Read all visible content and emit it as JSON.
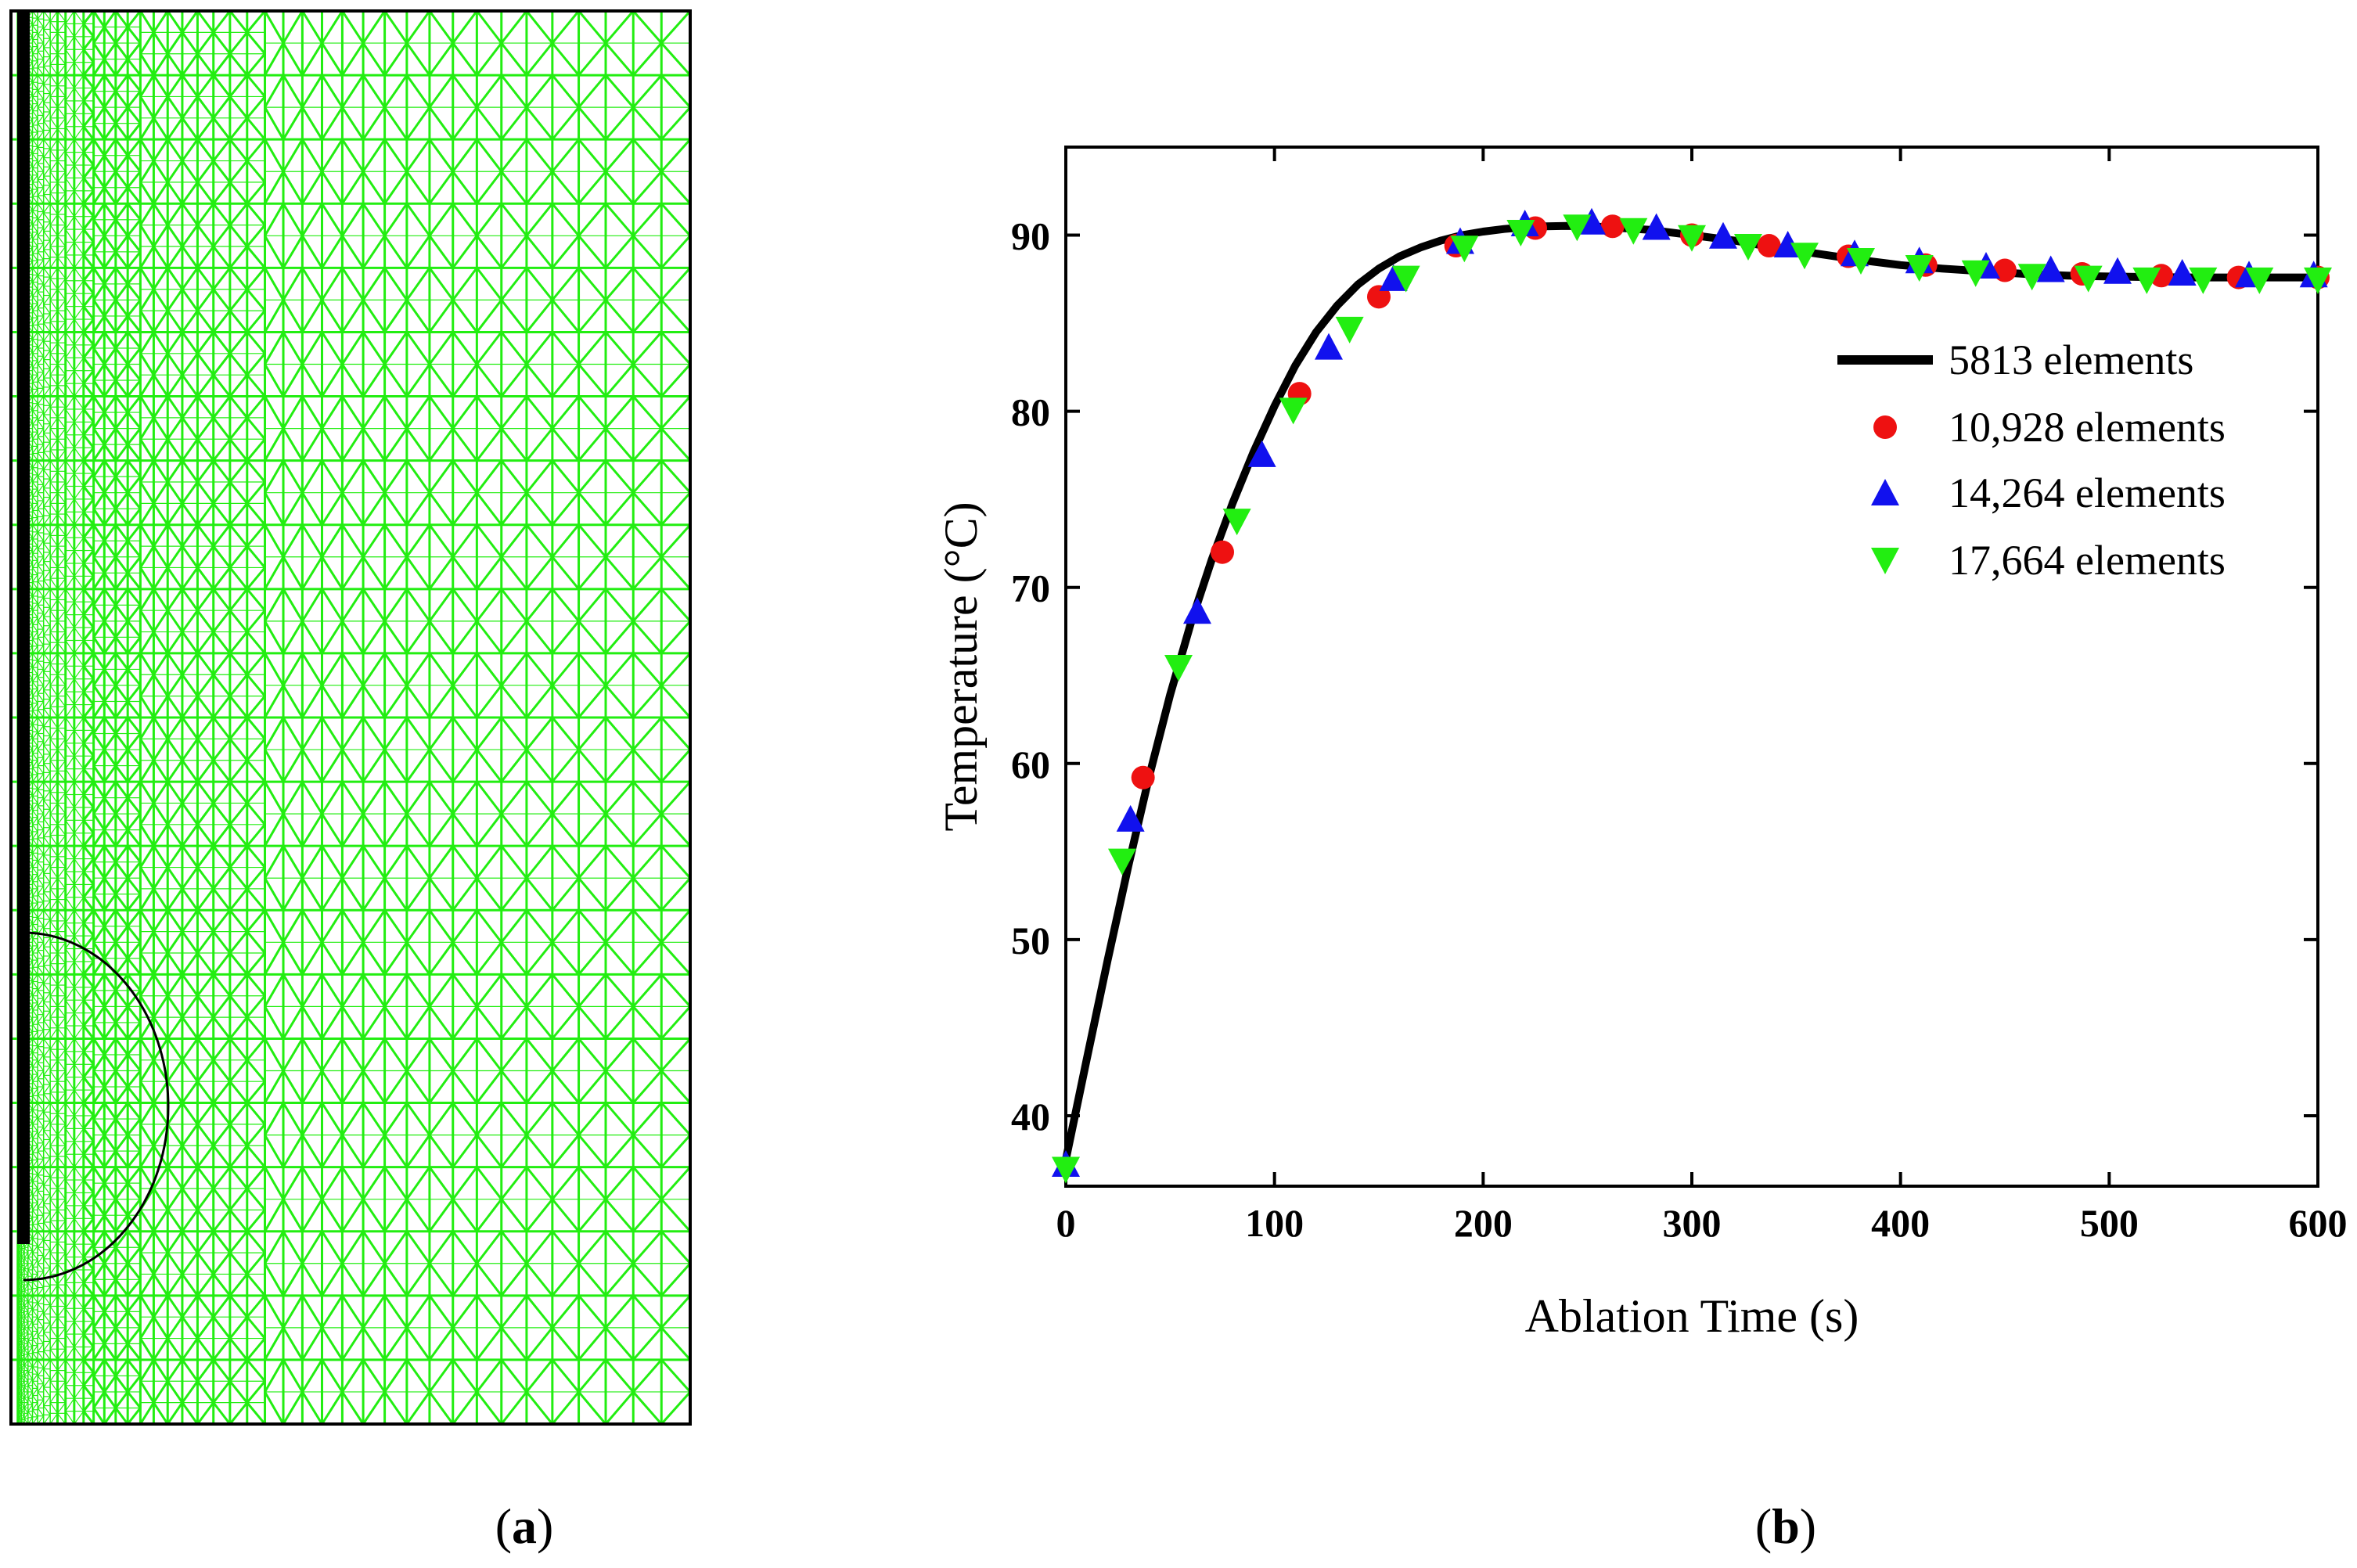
{
  "panels": {
    "a_label": "a",
    "b_label": "b"
  },
  "mesh": {
    "description_icon": "finite-element-mesh",
    "mesh_color": "#22ee11",
    "outline_color": "#000000"
  },
  "chart_data": {
    "type": "line",
    "title": "",
    "xlabel": "Ablation Time (s)",
    "ylabel": "Temperature (°C)",
    "xlim": [
      0,
      600
    ],
    "ylim": [
      36,
      95
    ],
    "xticks": [
      0,
      100,
      200,
      300,
      400,
      500,
      600
    ],
    "yticks": [
      40,
      50,
      60,
      70,
      80,
      90
    ],
    "legend_position": "center-right",
    "series": [
      {
        "name": "5813 elements",
        "style": "line",
        "color": "#000000",
        "x": [
          0,
          10,
          20,
          30,
          40,
          50,
          60,
          70,
          80,
          90,
          100,
          110,
          120,
          130,
          140,
          150,
          160,
          170,
          180,
          190,
          200,
          210,
          220,
          230,
          240,
          250,
          260,
          280,
          300,
          320,
          340,
          360,
          380,
          400,
          420,
          440,
          460,
          480,
          500,
          520,
          540,
          560,
          580,
          600
        ],
        "y": [
          37.5,
          43.2,
          48.8,
          54.2,
          59.3,
          63.9,
          68.0,
          71.6,
          74.8,
          77.7,
          80.3,
          82.6,
          84.5,
          86.0,
          87.2,
          88.1,
          88.8,
          89.3,
          89.7,
          90.0,
          90.2,
          90.35,
          90.45,
          90.5,
          90.52,
          90.5,
          90.45,
          90.3,
          90.0,
          89.7,
          89.3,
          88.95,
          88.6,
          88.3,
          88.1,
          87.95,
          87.8,
          87.7,
          87.65,
          87.62,
          87.6,
          87.6,
          87.6,
          87.6
        ]
      },
      {
        "name": "10,928 elements",
        "style": "circle",
        "color": "#ee1111",
        "x": [
          37,
          75,
          112,
          150,
          187,
          225,
          262,
          300,
          337,
          375,
          412,
          450,
          487,
          525,
          562,
          600
        ],
        "y": [
          59.2,
          72.0,
          81.0,
          86.5,
          89.4,
          90.4,
          90.5,
          90.0,
          89.4,
          88.8,
          88.3,
          88.0,
          87.8,
          87.7,
          87.6,
          87.6
        ]
      },
      {
        "name": "14,264 elements",
        "style": "triangle-up",
        "color": "#1111ee",
        "x": [
          0,
          31,
          63,
          94,
          126,
          157,
          189,
          220,
          252,
          283,
          315,
          346,
          378,
          409,
          441,
          472,
          504,
          535,
          567,
          598
        ],
        "y": [
          37.2,
          56.8,
          68.6,
          77.5,
          83.6,
          87.5,
          89.6,
          90.6,
          90.7,
          90.4,
          89.9,
          89.4,
          88.9,
          88.5,
          88.2,
          88.0,
          87.9,
          87.8,
          87.7,
          87.7
        ]
      },
      {
        "name": "17,664 elements",
        "style": "triangle-down",
        "color": "#22ee11",
        "x": [
          0,
          27,
          54,
          82,
          109,
          136,
          163,
          191,
          218,
          245,
          272,
          300,
          327,
          354,
          381,
          409,
          436,
          463,
          490,
          518,
          545,
          572,
          600
        ],
        "y": [
          37.0,
          54.5,
          65.5,
          73.8,
          80.1,
          84.7,
          87.6,
          89.3,
          90.2,
          90.5,
          90.3,
          89.9,
          89.4,
          88.9,
          88.6,
          88.2,
          87.9,
          87.7,
          87.6,
          87.5,
          87.5,
          87.5,
          87.5
        ]
      }
    ]
  }
}
